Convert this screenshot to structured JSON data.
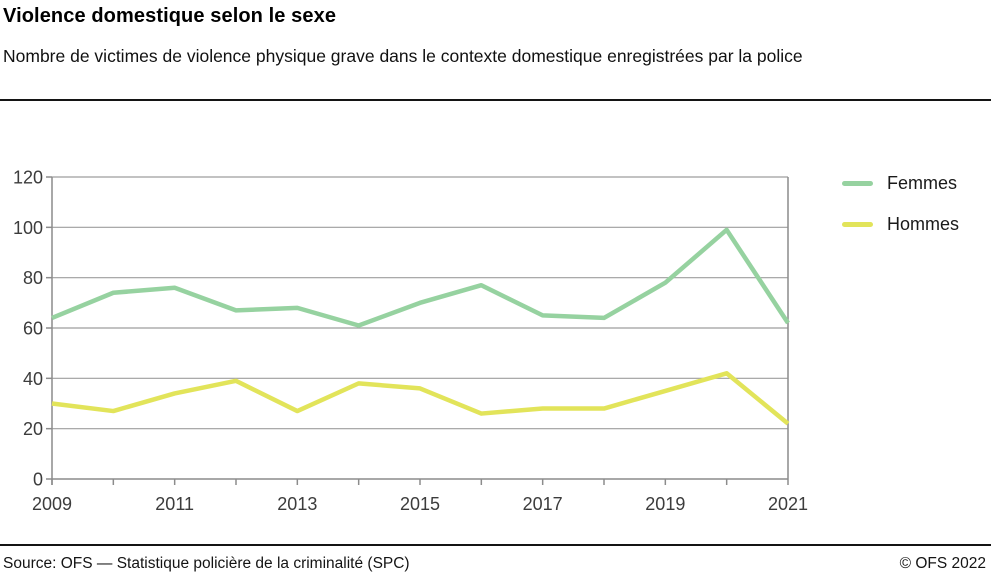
{
  "header": {
    "title": "Violence domestique selon le sexe",
    "subtitle": "Nombre de victimes de violence physique grave dans le contexte domestique enregistrées par la police"
  },
  "chart_data": {
    "type": "line",
    "title": "Violence domestique selon le sexe",
    "subtitle": "Nombre de victimes de violence physique grave dans le contexte domestique enregistrées par la police",
    "x": [
      2009,
      2010,
      2011,
      2012,
      2013,
      2014,
      2015,
      2016,
      2017,
      2018,
      2019,
      2020,
      2021
    ],
    "series": [
      {
        "name": "Femmes",
        "color": "#96d2a0",
        "values": [
          64,
          74,
          76,
          67,
          68,
          61,
          70,
          77,
          65,
          64,
          78,
          99,
          62
        ]
      },
      {
        "name": "Hommes",
        "color": "#e2e45a",
        "values": [
          30,
          27,
          34,
          39,
          27,
          38,
          36,
          26,
          28,
          28,
          35,
          42,
          22
        ]
      }
    ],
    "ylim": [
      0,
      120
    ],
    "ytick_step": 20,
    "yticks": [
      0,
      20,
      40,
      60,
      80,
      100,
      120
    ],
    "xticks_labeled": [
      2009,
      2011,
      2013,
      2015,
      2017,
      2019,
      2021
    ],
    "grid": "horizontal",
    "legend_position": "top-right",
    "axis_color": "#8c8c8c",
    "grid_color": "#9e9e9e",
    "tick_label_color": "#3c3c3c",
    "line_width": 4.5
  },
  "footer": {
    "source": "Source: OFS — Statistique policière de la criminalité (SPC)",
    "copyright": "© OFS 2022"
  }
}
